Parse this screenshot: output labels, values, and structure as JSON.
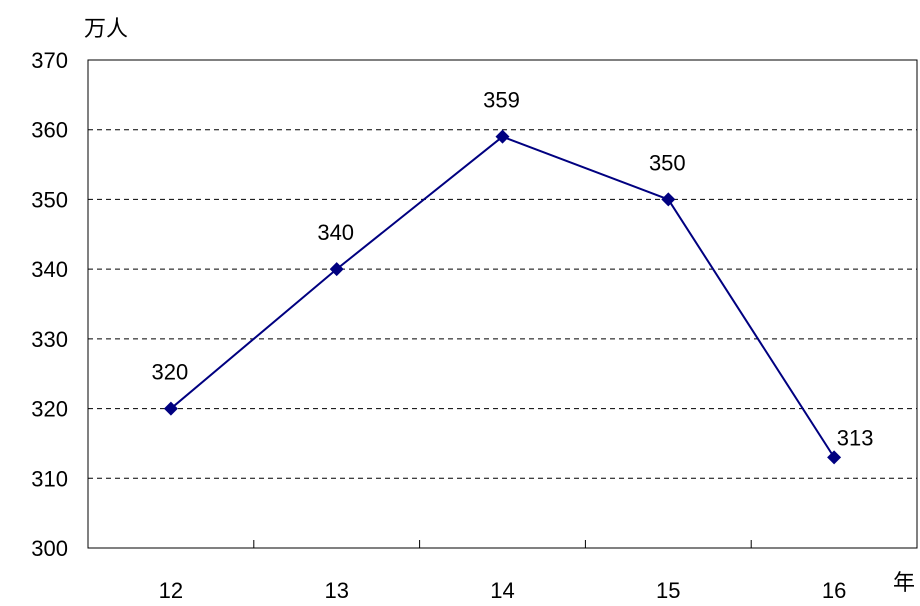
{
  "chart_data": {
    "type": "line",
    "title": "",
    "xlabel": "年",
    "ylabel": "万人",
    "categories": [
      "12",
      "13",
      "14",
      "15",
      "16"
    ],
    "series": [
      {
        "values": [
          320,
          340,
          359,
          350,
          313
        ],
        "color": "#000080"
      }
    ],
    "data_labels": [
      "320",
      "340",
      "359",
      "350",
      "313"
    ],
    "ylim": [
      300,
      370
    ],
    "yticks": [
      300,
      310,
      320,
      330,
      340,
      350,
      360,
      370
    ],
    "ytick_labels": [
      "300",
      "310",
      "320",
      "330",
      "340",
      "350",
      "360",
      "370"
    ],
    "grid": "horizontal dashed",
    "legend": "none",
    "marker": "diamond"
  }
}
